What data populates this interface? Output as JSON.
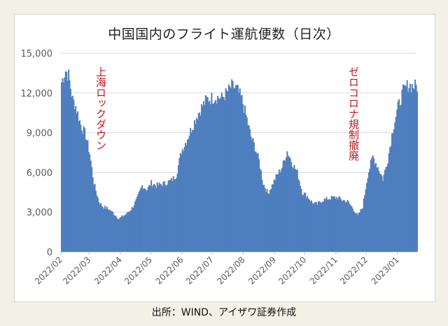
{
  "title": "中国国内のフライト運航便数（日次）",
  "source": "出所：WIND、アイザワ証券作成",
  "colors": {
    "bar": "#4f7fbf",
    "annotation": "#c0171b",
    "grid": "#d9d9d9",
    "background": "#f3f1e6"
  },
  "chart_data": {
    "type": "area",
    "title": "中国国内のフライト運航便数（日次）",
    "xlabel": "",
    "ylabel": "",
    "ylim": [
      0,
      15000
    ],
    "yticks": [
      0,
      3000,
      6000,
      9000,
      12000,
      15000
    ],
    "ytick_labels": [
      "0",
      "3,000",
      "6,000",
      "9,000",
      "12,000",
      "15,000"
    ],
    "xtick_labels": [
      "2022/02",
      "2022/03",
      "2022/04",
      "2022/05",
      "2022/06",
      "2022/07",
      "2022/08",
      "2022/09",
      "2022/10",
      "2022/11",
      "2022/12",
      "2023/01"
    ],
    "grid": true,
    "annotations": [
      {
        "text": "上海ロックダウン",
        "x": "2022-03-17"
      },
      {
        "text": "ゼロコロナ規制撤廃",
        "x": "2022-12-01"
      }
    ],
    "series": [
      {
        "x": [
          "2022-02-01",
          "2022-02-05",
          "2022-02-08",
          "2022-02-12",
          "2022-02-15",
          "2022-02-20",
          "2022-02-25",
          "2022-03-01",
          "2022-03-05",
          "2022-03-10",
          "2022-03-14",
          "2022-03-18",
          "2022-03-22",
          "2022-03-26",
          "2022-03-30",
          "2022-04-03",
          "2022-04-07",
          "2022-04-12",
          "2022-04-17",
          "2022-04-22",
          "2022-04-27",
          "2022-05-01",
          "2022-05-06",
          "2022-05-11",
          "2022-05-16",
          "2022-05-21",
          "2022-05-26",
          "2022-05-31",
          "2022-06-05",
          "2022-06-10",
          "2022-06-15",
          "2022-06-20",
          "2022-06-25",
          "2022-06-30",
          "2022-07-05",
          "2022-07-10",
          "2022-07-15",
          "2022-07-20",
          "2022-07-25",
          "2022-07-30",
          "2022-08-04",
          "2022-08-08",
          "2022-08-12",
          "2022-08-16",
          "2022-08-20",
          "2022-08-25",
          "2022-08-30",
          "2022-09-03",
          "2022-09-08",
          "2022-09-13",
          "2022-09-18",
          "2022-09-23",
          "2022-09-28",
          "2022-10-03",
          "2022-10-08",
          "2022-10-13",
          "2022-10-18",
          "2022-10-23",
          "2022-10-28",
          "2022-11-02",
          "2022-11-07",
          "2022-11-12",
          "2022-11-17",
          "2022-11-22",
          "2022-11-27",
          "2022-12-02",
          "2022-12-07",
          "2022-12-12",
          "2022-12-17",
          "2022-12-22",
          "2022-12-27",
          "2023-01-01",
          "2023-01-06",
          "2023-01-11",
          "2023-01-16"
        ],
        "values": [
          12800,
          13700,
          13300,
          11500,
          11000,
          9600,
          8800,
          7400,
          5200,
          3800,
          3400,
          3300,
          3100,
          2800,
          2500,
          2700,
          2900,
          3300,
          4000,
          5000,
          4700,
          5200,
          5000,
          5100,
          5200,
          5400,
          5800,
          7600,
          8400,
          9300,
          10200,
          10900,
          11500,
          11600,
          11700,
          11600,
          12000,
          12500,
          12300,
          11500,
          10000,
          8700,
          7900,
          6900,
          5200,
          4400,
          5200,
          5800,
          6400,
          7600,
          6700,
          6000,
          4500,
          4200,
          3700,
          3600,
          3900,
          4000,
          4100,
          4100,
          3900,
          3800,
          3300,
          2700,
          3400,
          5800,
          7200,
          6400,
          5500,
          7000,
          9300,
          10900,
          12100,
          12600,
          12500
        ]
      }
    ]
  }
}
